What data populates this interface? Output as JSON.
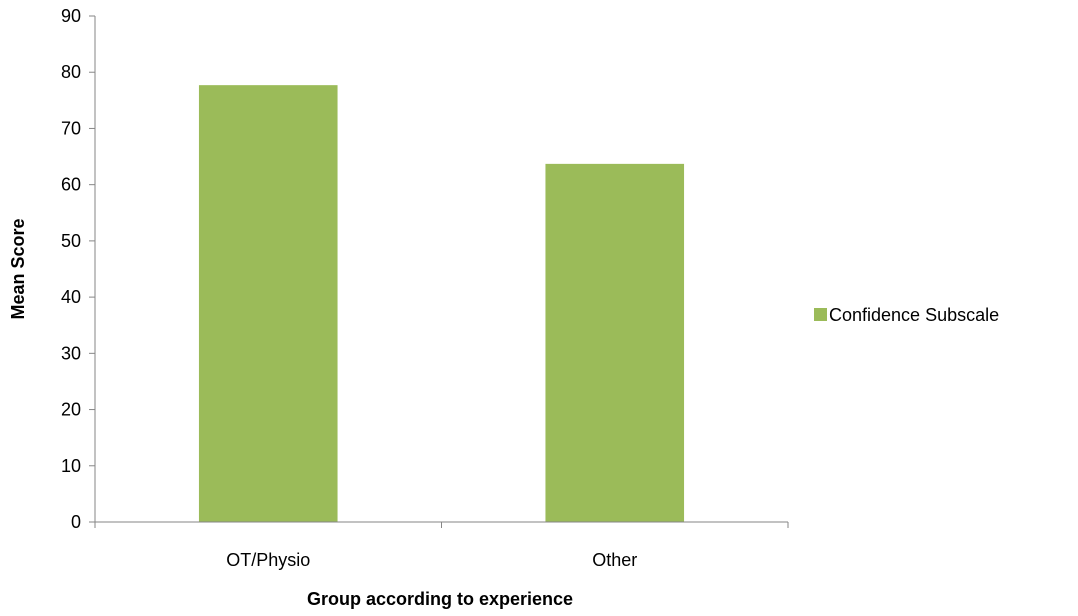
{
  "chart_data": {
    "type": "bar",
    "title": "",
    "xlabel": "Group according to experience",
    "ylabel": "Mean Score",
    "categories": [
      "OT/Physio",
      "Other"
    ],
    "series": [
      {
        "name": "Confidence Subscale",
        "values": [
          77.7,
          63.7
        ],
        "color": "#9bbb59"
      }
    ],
    "ylim": [
      0,
      90
    ],
    "yticks": [
      "0",
      "10",
      "20",
      "30",
      "40",
      "50",
      "60",
      "70",
      "80",
      "90"
    ],
    "grid": false,
    "legend_position": "right"
  },
  "colors": {
    "axis": "#868686",
    "bar": "#9bbb59"
  }
}
